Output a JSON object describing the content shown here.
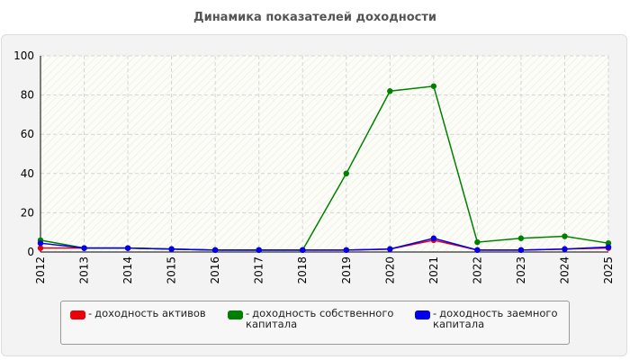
{
  "chart_data": {
    "type": "line",
    "title": "Динамика показателей доходности",
    "xlabel": "",
    "ylabel": "",
    "categories": [
      "2012",
      "2013",
      "2014",
      "2015",
      "2016",
      "2017",
      "2018",
      "2019",
      "2020",
      "2021",
      "2022",
      "2023",
      "2024",
      "2025"
    ],
    "ylim": [
      0,
      100
    ],
    "yticks": [
      0,
      20,
      40,
      60,
      80,
      100
    ],
    "grid": true,
    "legend_position": "bottom",
    "series": [
      {
        "name": "доходность активов",
        "color": "#e8000b",
        "values": [
          2,
          2,
          2,
          1.5,
          1,
          1,
          1,
          1,
          1.5,
          6,
          1,
          1,
          1.5,
          2
        ]
      },
      {
        "name": "доходность собственного капитала",
        "color": "#008000",
        "values": [
          6,
          2,
          2,
          1.5,
          1,
          1,
          1,
          40,
          82,
          84.5,
          5,
          7,
          8,
          4.5
        ]
      },
      {
        "name": "доходность заемного капитала",
        "color": "#0000ee",
        "values": [
          4.5,
          2,
          2,
          1.5,
          1,
          1,
          1,
          1,
          1.5,
          7,
          1,
          1,
          1.5,
          2.5
        ]
      }
    ]
  },
  "legend": {
    "dash": "-",
    "lines": [
      [
        "доходность активов"
      ],
      [
        "доходность собственного",
        "капитала"
      ],
      [
        "доходность заемного",
        "капитала"
      ]
    ]
  }
}
